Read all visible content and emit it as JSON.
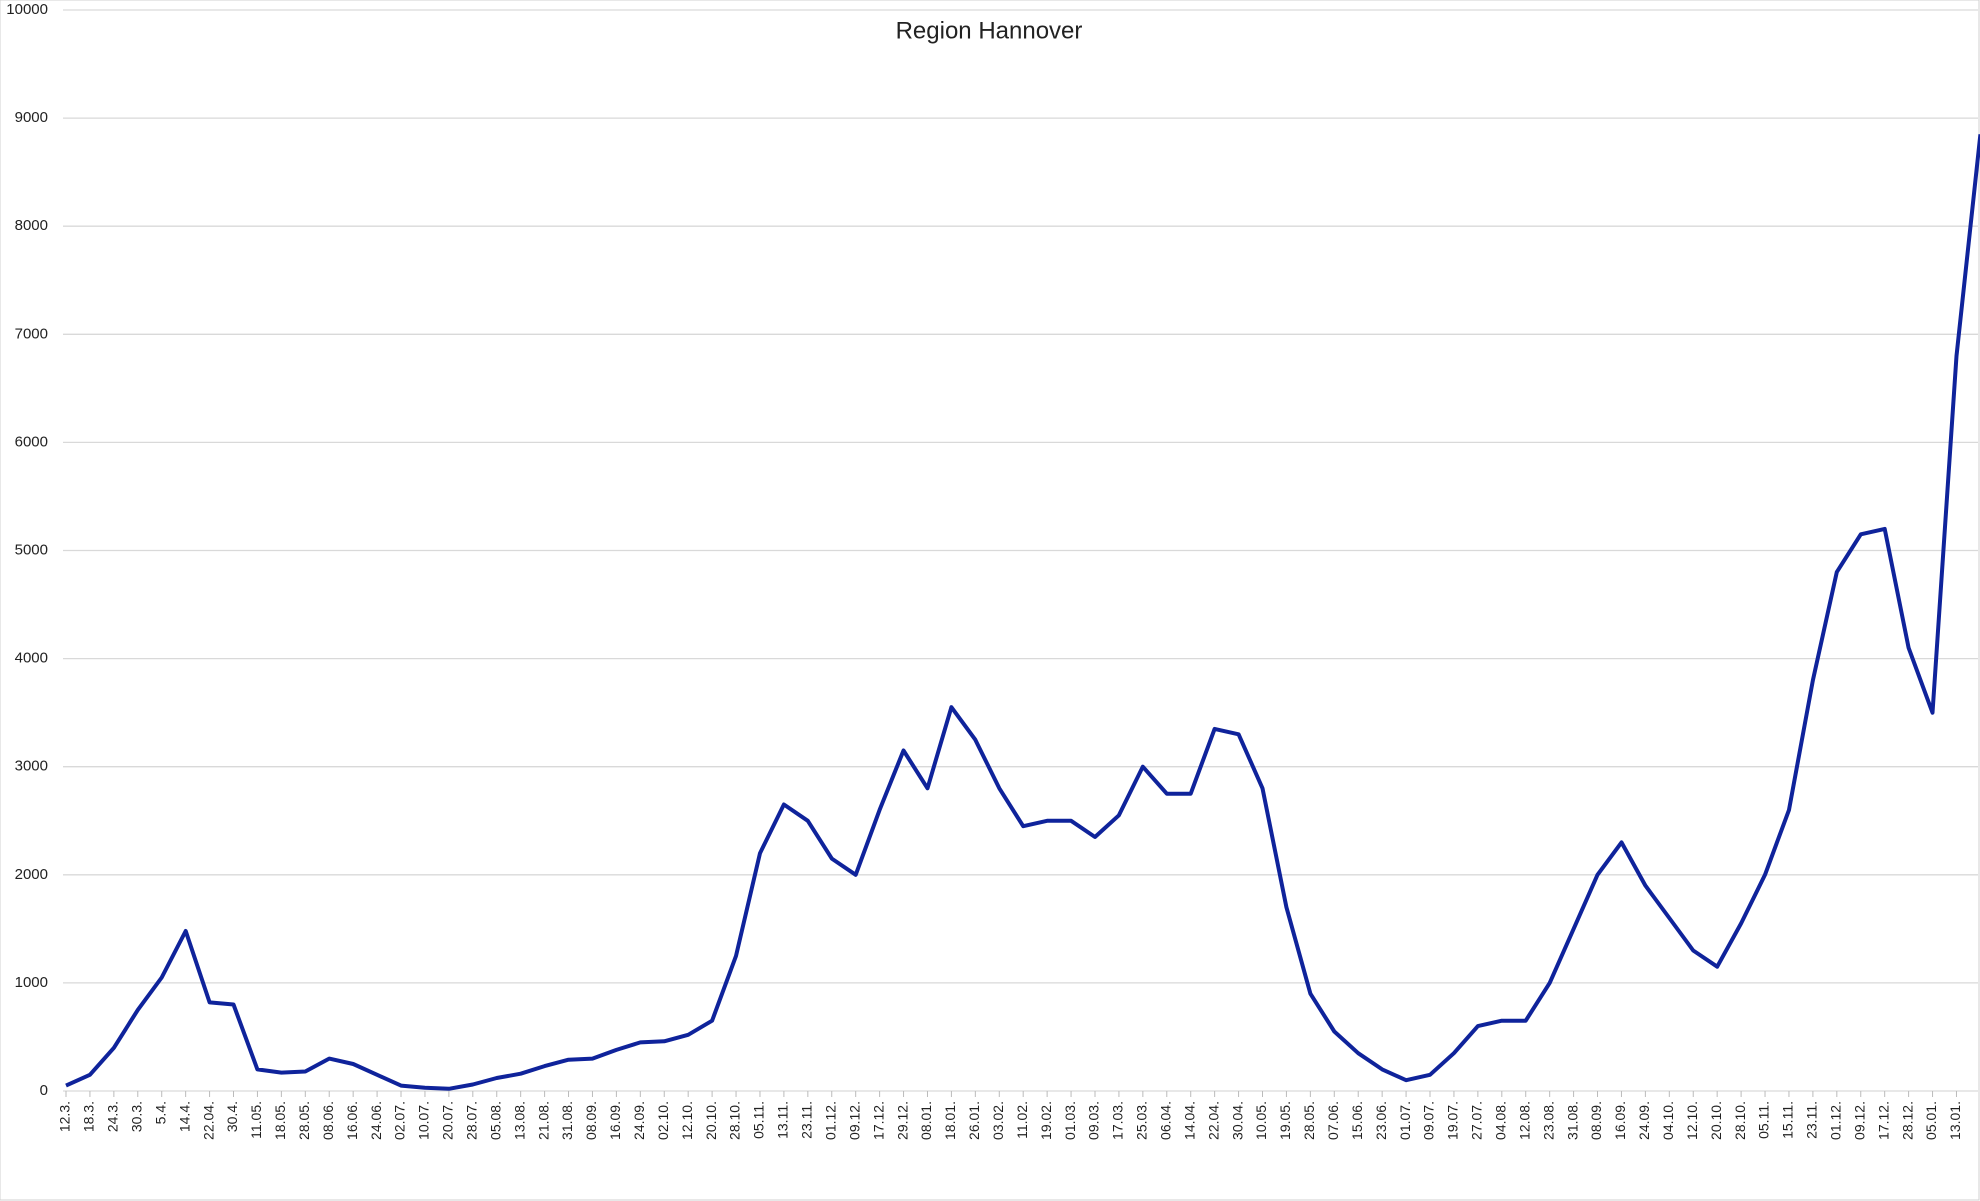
{
  "chart_data": {
    "type": "line",
    "title": "Region Hannover",
    "categories": [
      "12.3.",
      "18.3.",
      "24.3.",
      "30.3.",
      "5.4.",
      "14.4.",
      "22.04.",
      "30.4.",
      "11.05.",
      "18.05.",
      "28.05.",
      "08.06.",
      "16.06.",
      "24.06.",
      "02.07.",
      "10.07.",
      "20.07.",
      "28.07.",
      "05.08.",
      "13.08.",
      "21.08.",
      "31.08.",
      "08.09.",
      "16.09.",
      "24.09.",
      "02.10.",
      "12.10.",
      "20.10.",
      "28.10.",
      "05.11.",
      "13.11.",
      "23.11.",
      "01.12.",
      "09.12.",
      "17.12.",
      "29.12.",
      "08.01.",
      "18.01.",
      "26.01.",
      "03.02.",
      "11.02.",
      "19.02.",
      "01.03.",
      "09.03.",
      "17.03.",
      "25.03.",
      "06.04.",
      "14.04.",
      "22.04.",
      "30.04.",
      "10.05.",
      "19.05.",
      "28.05.",
      "07.06.",
      "15.06.",
      "23.06.",
      "01.07.",
      "09.07.",
      "19.07.",
      "27.07.",
      "04.08.",
      "12.08.",
      "23.08.",
      "31.08.",
      "08.09.",
      "16.09.",
      "24.09.",
      "04.10.",
      "12.10.",
      "20.10.",
      "28.10.",
      "05.11.",
      "15.11.",
      "23.11.",
      "01.12.",
      "09.12.",
      "17.12.",
      "28.12.",
      "05.01.",
      "13.01.",
      null
    ],
    "series": [
      {
        "name": "Region Hannover",
        "color": "#0f239b",
        "values": [
          50,
          150,
          400,
          750,
          1050,
          1480,
          820,
          800,
          200,
          170,
          180,
          300,
          250,
          150,
          50,
          30,
          20,
          60,
          120,
          160,
          230,
          290,
          300,
          380,
          450,
          460,
          520,
          650,
          1250,
          2200,
          2650,
          2500,
          2150,
          2000,
          2600,
          3150,
          2800,
          3550,
          3250,
          2800,
          2450,
          2500,
          2500,
          2350,
          2550,
          3000,
          2750,
          2750,
          3350,
          3300,
          2800,
          1700,
          900,
          550,
          350,
          200,
          100,
          150,
          350,
          600,
          650,
          650,
          1000,
          1500,
          2000,
          2300,
          1900,
          1600,
          1300,
          1150,
          1550,
          2000,
          2600,
          3800,
          4800,
          5150,
          5200,
          4100,
          3500,
          6800,
          8850
        ]
      }
    ],
    "ylim": [
      0,
      10000
    ],
    "yticks": [
      0,
      1000,
      2000,
      3000,
      4000,
      5000,
      6000,
      7000,
      8000,
      9000,
      10000
    ],
    "grid": true
  }
}
